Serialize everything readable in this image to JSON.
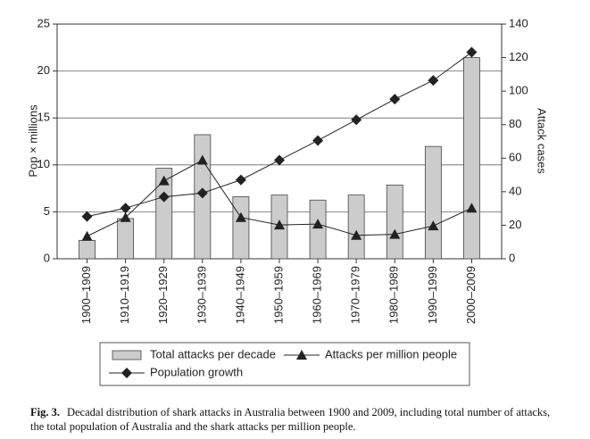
{
  "chart_data": {
    "type": "bar",
    "categories": [
      "1900–1909",
      "1910–1919",
      "1920–1929",
      "1930–1939",
      "1940–1949",
      "1950–1959",
      "1960–1969",
      "1970–1979",
      "1980–1989",
      "1990–1999",
      "2000–2009"
    ],
    "series": [
      {
        "name": "Total attacks per decade",
        "type": "bar",
        "axis": "y2",
        "color": "#cccccc",
        "values": [
          11,
          24,
          54,
          74,
          37,
          38,
          35,
          38,
          44,
          67,
          120
        ]
      },
      {
        "name": "Attacks per million people",
        "type": "line",
        "marker": "triangle",
        "color": "#222222",
        "values": [
          2.4,
          4.4,
          8.3,
          10.5,
          4.4,
          3.6,
          3.7,
          2.5,
          2.6,
          3.5,
          5.4
        ]
      },
      {
        "name": "Population growth",
        "type": "line",
        "marker": "diamond",
        "color": "#222222",
        "values": [
          4.5,
          5.4,
          6.6,
          7.0,
          8.4,
          10.5,
          12.6,
          14.8,
          17.0,
          19.0,
          22.0
        ]
      }
    ],
    "y_label": "Pop × millions",
    "y2_label": "Attack cases",
    "ylim": [
      0,
      25
    ],
    "yticks": [
      0,
      5,
      10,
      15,
      20,
      25
    ],
    "y2lim": [
      0,
      140
    ],
    "y2ticks": [
      0,
      20,
      40,
      60,
      80,
      100,
      120,
      140
    ],
    "grid": true,
    "figure_label": "Fig. 3.",
    "caption": "Decadal distribution of shark attacks in Australia between 1900 and 2009, including total number of attacks, the total population of Australia and the shark attacks per million people."
  }
}
